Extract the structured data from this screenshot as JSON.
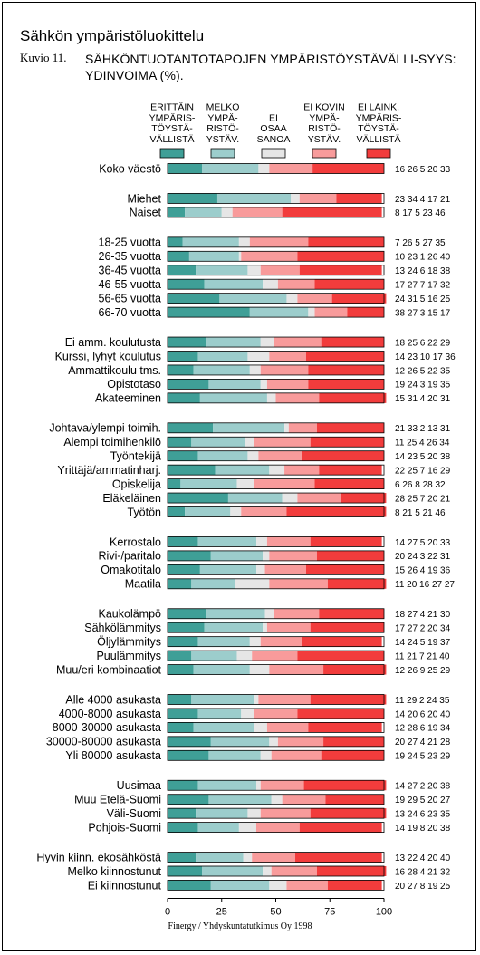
{
  "header": {
    "title": "Sähkön ympäristöluokittelu",
    "figure_label": "Kuvio 11.",
    "figure_title": "SÄHKÖNTUOTANTOTAPOJEN YMPÄRISTÖYSTÄVÄLLI-SYYS: YDINVOIMA (%)."
  },
  "footer": {
    "source": "Finergy / Yhdyskuntatutkimus Oy 1998"
  },
  "chart_data": {
    "type": "bar",
    "orientation": "horizontal",
    "stacked": true,
    "xlim": [
      0,
      100
    ],
    "x_ticks": [
      "0",
      "25",
      "50",
      "75",
      "100"
    ],
    "legend_position": "top",
    "series": [
      {
        "name": "ERITTÄIN YMPÄRIS-TÖYSTÄ-VÄLLISTÄ",
        "legend_lines": [
          "ERITTÄIN",
          "YMPÄRIS-",
          "TÖYSTÄ-",
          "VÄLLISTÄ"
        ],
        "color": "#3f9f97"
      },
      {
        "name": "MELKO YMPÄ-RISTÖ-YSTÄV.",
        "legend_lines": [
          "MELKO",
          "YMPÄ-",
          "RISTÖ-",
          "YSTÄV."
        ],
        "color": "#9ccdcc"
      },
      {
        "name": "EI OSAA SANOA",
        "legend_lines": [
          "EI",
          "OSAA",
          "SANOA"
        ],
        "color": "#e6e6e6"
      },
      {
        "name": "EI KOVIN YMPÄ-RISTÖ-YSTÄV.",
        "legend_lines": [
          "EI KOVIN",
          "YMPÄ-",
          "RISTÖ-",
          "YSTÄV."
        ],
        "color": "#f89b9b"
      },
      {
        "name": "EI LAINK. YMPÄRIS-TÖYSTÄ-VÄLLISTÄ",
        "legend_lines": [
          "EI LAINK.",
          "YMPÄRIS-",
          "TÖYSTÄ-",
          "VÄLLISTÄ"
        ],
        "color": "#f23c3c"
      }
    ],
    "groups": [
      {
        "rows": [
          {
            "label": "Koko väestö",
            "values": [
              16,
              26,
              5,
              20,
              33
            ]
          }
        ]
      },
      {
        "rows": [
          {
            "label": "Miehet",
            "values": [
              23,
              34,
              4,
              17,
              21
            ]
          },
          {
            "label": "Naiset",
            "values": [
              8,
              17,
              5,
              23,
              46
            ]
          }
        ]
      },
      {
        "rows": [
          {
            "label": "18-25 vuotta",
            "values": [
              7,
              26,
              5,
              27,
              35
            ]
          },
          {
            "label": "26-35 vuotta",
            "values": [
              10,
              23,
              1,
              26,
              40
            ]
          },
          {
            "label": "36-45 vuotta",
            "values": [
              13,
              24,
              6,
              18,
              38
            ]
          },
          {
            "label": "46-55 vuotta",
            "values": [
              17,
              27,
              7,
              17,
              32
            ]
          },
          {
            "label": "56-65 vuotta",
            "values": [
              24,
              31,
              5,
              16,
              25
            ]
          },
          {
            "label": "66-70 vuotta",
            "values": [
              38,
              27,
              3,
              15,
              17
            ]
          }
        ]
      },
      {
        "rows": [
          {
            "label": "Ei amm. koulutusta",
            "values": [
              18,
              25,
              6,
              22,
              29
            ]
          },
          {
            "label": "Kurssi, lyhyt koulutus",
            "values": [
              14,
              23,
              10,
              17,
              36
            ]
          },
          {
            "label": "Ammattikoulu tms.",
            "values": [
              12,
              26,
              5,
              22,
              35
            ]
          },
          {
            "label": "Opistotaso",
            "values": [
              19,
              24,
              3,
              19,
              35
            ]
          },
          {
            "label": "Akateeminen",
            "values": [
              15,
              31,
              4,
              20,
              31
            ]
          }
        ]
      },
      {
        "rows": [
          {
            "label": "Johtava/ylempi toimih.",
            "values": [
              21,
              33,
              2,
              13,
              31
            ]
          },
          {
            "label": "Alempi toimihenkilö",
            "values": [
              11,
              25,
              4,
              26,
              34
            ]
          },
          {
            "label": "Työntekijä",
            "values": [
              14,
              23,
              5,
              20,
              38
            ]
          },
          {
            "label": "Yrittäjä/ammatinharj.",
            "values": [
              22,
              25,
              7,
              16,
              29
            ]
          },
          {
            "label": "Opiskelija",
            "values": [
              6,
              26,
              8,
              28,
              32
            ]
          },
          {
            "label": "Eläkeläinen",
            "values": [
              28,
              25,
              7,
              20,
              21
            ]
          },
          {
            "label": "Työtön",
            "values": [
              8,
              21,
              5,
              21,
              46
            ]
          }
        ]
      },
      {
        "rows": [
          {
            "label": "Kerrostalo",
            "values": [
              14,
              27,
              5,
              20,
              33
            ]
          },
          {
            "label": "Rivi-/paritalo",
            "values": [
              20,
              24,
              3,
              22,
              31
            ]
          },
          {
            "label": "Omakotitalo",
            "values": [
              15,
              26,
              4,
              19,
              36
            ]
          },
          {
            "label": "Maatila",
            "values": [
              11,
              20,
              16,
              27,
              27
            ]
          }
        ]
      },
      {
        "rows": [
          {
            "label": "Kaukolämpö",
            "values": [
              18,
              27,
              4,
              21,
              30
            ]
          },
          {
            "label": "Sähkölämmitys",
            "values": [
              17,
              27,
              2,
              20,
              34
            ]
          },
          {
            "label": "Öljylämmitys",
            "values": [
              14,
              24,
              5,
              19,
              37
            ]
          },
          {
            "label": "Puulämmitys",
            "values": [
              11,
              21,
              7,
              21,
              40
            ]
          },
          {
            "label": "Muu/eri kombinaatiot",
            "values": [
              12,
              26,
              9,
              25,
              29
            ]
          }
        ]
      },
      {
        "rows": [
          {
            "label": "Alle 4000 asukasta",
            "values": [
              11,
              29,
              2,
              24,
              35
            ]
          },
          {
            "label": "4000-8000 asukasta",
            "values": [
              14,
              20,
              6,
              20,
              40
            ]
          },
          {
            "label": "8000-30000 asukasta",
            "values": [
              12,
              28,
              6,
              19,
              34
            ]
          },
          {
            "label": "30000-80000 asukasta",
            "values": [
              20,
              27,
              4,
              21,
              28
            ]
          },
          {
            "label": "Yli 80000 asukasta",
            "values": [
              19,
              24,
              5,
              23,
              29
            ]
          }
        ]
      },
      {
        "rows": [
          {
            "label": "Uusimaa",
            "values": [
              14,
              27,
              2,
              20,
              38
            ]
          },
          {
            "label": "Muu Etelä-Suomi",
            "values": [
              19,
              29,
              5,
              20,
              27
            ]
          },
          {
            "label": "Väli-Suomi",
            "values": [
              13,
              24,
              6,
              23,
              35
            ]
          },
          {
            "label": "Pohjois-Suomi",
            "values": [
              14,
              19,
              8,
              20,
              38
            ]
          }
        ]
      },
      {
        "rows": [
          {
            "label": "Hyvin kiinn. ekosähköstä",
            "values": [
              13,
              22,
              4,
              20,
              40
            ]
          },
          {
            "label": "Melko kiinnostunut",
            "values": [
              16,
              28,
              4,
              21,
              32
            ]
          },
          {
            "label": "Ei kiinnostunut",
            "values": [
              20,
              27,
              8,
              19,
              25
            ]
          }
        ]
      }
    ]
  }
}
